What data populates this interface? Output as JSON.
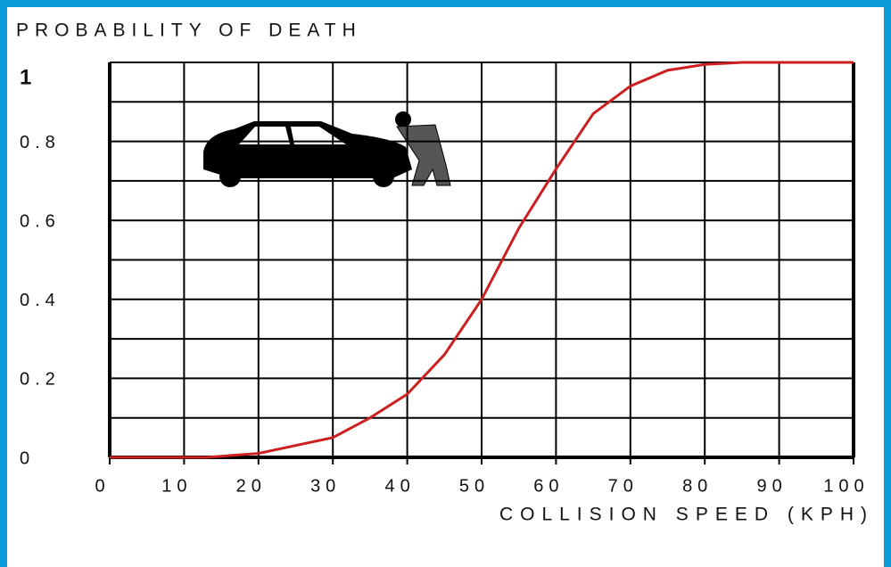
{
  "chart_data": {
    "type": "line",
    "y_label": "PROBABILITY OF DEATH",
    "x_label": "COLLISION SPEED (KPH)",
    "x": [
      0,
      10,
      13,
      20,
      25,
      30,
      35,
      40,
      45,
      50,
      55,
      60,
      65,
      70,
      75,
      80,
      85,
      90,
      100
    ],
    "series": [
      {
        "color": "#cc1f1f",
        "values": [
          0,
          0,
          0,
          0.01,
          0.03,
          0.05,
          0.1,
          0.16,
          0.26,
          0.4,
          0.58,
          0.73,
          0.87,
          0.94,
          0.98,
          0.995,
          1,
          1,
          1
        ]
      }
    ],
    "xlim": [
      0,
      100
    ],
    "xticks": [
      0,
      10,
      20,
      30,
      40,
      50,
      60,
      70,
      80,
      90,
      100
    ],
    "ylim": [
      0,
      1
    ],
    "yticks": [
      0,
      0.2,
      0.4,
      0.6,
      0.8,
      1
    ],
    "ygrid": [
      0,
      0.1,
      0.2,
      0.3,
      0.4,
      0.5,
      0.6,
      0.7,
      0.8,
      0.9,
      1
    ],
    "grid": true
  }
}
